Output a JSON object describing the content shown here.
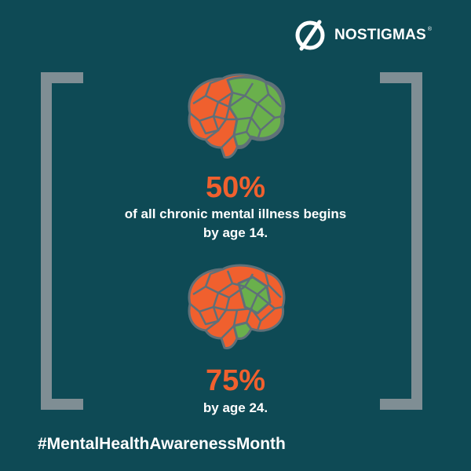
{
  "brand": {
    "name": "NOSTIGMAS",
    "registered_mark": "®",
    "logo_icon": "slashed-circle-icon"
  },
  "colors": {
    "background": "#0e4a55",
    "bracket": "#7f8e94",
    "accent": "#f0602e",
    "brain_green": "#6ab04c",
    "text": "#ffffff"
  },
  "stats": [
    {
      "value": "50%",
      "lines": [
        "of all chronic mental illness begins",
        "by age 14."
      ],
      "icon": "brain-icon"
    },
    {
      "value": "75%",
      "lines": [
        "by age 24."
      ],
      "icon": "brain-icon"
    }
  ],
  "hashtag": "#MentalHealthAwarenessMonth"
}
